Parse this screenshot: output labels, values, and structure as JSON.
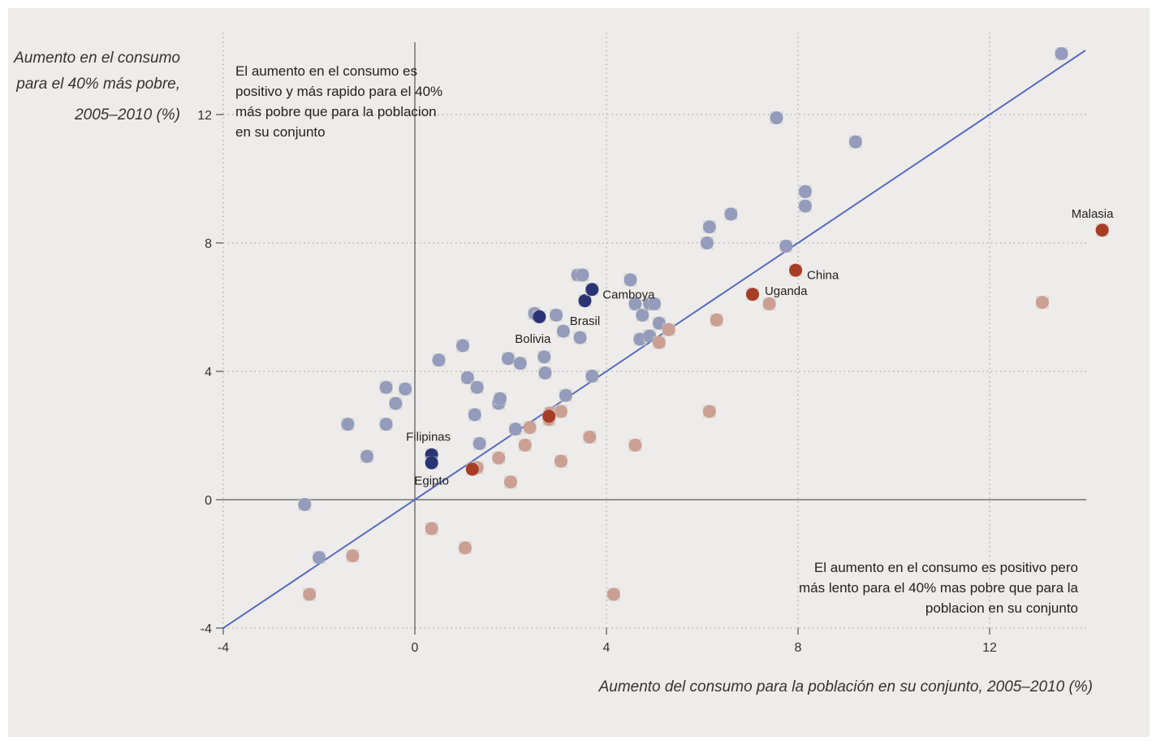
{
  "chart_data": {
    "type": "scatter",
    "ylabel": [
      "Aumento en el consumo",
      "para el 40% más pobre,",
      "2005–2010 (%)"
    ],
    "xlabel": "Aumento del consumo para la población en su conjunto, 2005–2010 (%)",
    "xlim": [
      -4,
      14.5
    ],
    "ylim": [
      -4,
      14
    ],
    "xticks": [
      -4,
      0,
      4,
      8,
      12
    ],
    "yticks": [
      -4,
      0,
      4,
      8,
      12
    ],
    "xtick_labels": [
      "-4",
      "0",
      "4",
      "8",
      "12"
    ],
    "ytick_labels": [
      "-4",
      "0",
      "4",
      "8",
      "12"
    ],
    "grid": "dotted at ticks",
    "reference_line": {
      "slope": 1,
      "intercept": 0,
      "color": "#5a6bbf"
    },
    "annotations": {
      "top_left": [
        "El aumento en el consumo es",
        "positivo y más rapido para el 40%",
        "más pobre que para la poblacion",
        "en su conjunto"
      ],
      "bottom_right": [
        "El aumento en el consumo es positivo pero",
        "más lento para el 40% mas pobre que para la",
        "poblacion en su conjunto"
      ]
    },
    "colors": {
      "above": "#949bbb",
      "below": "#cc9f94",
      "highlight_above": "#2a3475",
      "highlight_below": "#a83d26",
      "halo": "#cfcdc8"
    },
    "series": [
      {
        "group": "above",
        "points": [
          [
            -2.3,
            -0.15
          ],
          [
            -2.0,
            -1.8
          ],
          [
            -1.4,
            2.35
          ],
          [
            -1.0,
            1.35
          ],
          [
            -0.6,
            3.5
          ],
          [
            -0.6,
            2.35
          ],
          [
            -0.4,
            3.0
          ],
          [
            -0.2,
            3.45
          ],
          [
            0.5,
            4.35
          ],
          [
            1.0,
            4.8
          ],
          [
            1.1,
            3.8
          ],
          [
            1.25,
            2.65
          ],
          [
            1.3,
            3.5
          ],
          [
            1.35,
            1.75
          ],
          [
            1.75,
            3.0
          ],
          [
            1.78,
            3.15
          ],
          [
            1.95,
            4.4
          ],
          [
            2.1,
            2.2
          ],
          [
            2.2,
            4.25
          ],
          [
            2.5,
            5.8
          ],
          [
            2.7,
            4.45
          ],
          [
            2.72,
            3.95
          ],
          [
            2.95,
            5.75
          ],
          [
            3.1,
            5.25
          ],
          [
            3.15,
            3.25
          ],
          [
            3.4,
            7.0
          ],
          [
            3.5,
            7.0
          ],
          [
            3.45,
            5.05
          ],
          [
            3.7,
            3.85
          ],
          [
            4.5,
            6.85
          ],
          [
            4.6,
            6.1
          ],
          [
            4.7,
            5.0
          ],
          [
            4.75,
            5.75
          ],
          [
            4.9,
            5.1
          ],
          [
            4.9,
            6.1
          ],
          [
            5.0,
            6.1
          ],
          [
            5.1,
            5.5
          ],
          [
            6.1,
            8.0
          ],
          [
            6.15,
            8.5
          ],
          [
            6.6,
            8.9
          ],
          [
            7.55,
            11.9
          ],
          [
            7.75,
            7.9
          ],
          [
            8.15,
            9.15
          ],
          [
            8.15,
            9.6
          ],
          [
            9.2,
            11.15
          ],
          [
            13.5,
            13.9
          ]
        ]
      },
      {
        "group": "below",
        "points": [
          [
            -2.2,
            -2.95
          ],
          [
            -1.3,
            -1.75
          ],
          [
            0.35,
            -0.9
          ],
          [
            1.05,
            -1.5
          ],
          [
            1.3,
            1.0
          ],
          [
            1.75,
            1.3
          ],
          [
            2.0,
            0.55
          ],
          [
            2.3,
            1.7
          ],
          [
            2.4,
            2.25
          ],
          [
            2.8,
            2.5
          ],
          [
            2.82,
            2.7
          ],
          [
            3.05,
            2.75
          ],
          [
            3.05,
            1.2
          ],
          [
            3.65,
            1.95
          ],
          [
            4.15,
            -2.95
          ],
          [
            4.6,
            1.7
          ],
          [
            5.1,
            4.9
          ],
          [
            5.3,
            5.3
          ],
          [
            6.3,
            5.6
          ],
          [
            6.15,
            2.75
          ],
          [
            7.4,
            6.1
          ],
          [
            13.1,
            6.15
          ]
        ]
      },
      {
        "group": "highlight_above",
        "points": [
          {
            "x": 0.35,
            "y": 1.4,
            "label": "Filipinas",
            "lx": -4,
            "ly": -22,
            "anchor": "middle"
          },
          {
            "x": 0.35,
            "y": 1.15,
            "label": "Egipto",
            "lx": 0,
            "ly": 22,
            "anchor": "middle"
          },
          {
            "x": 2.6,
            "y": 5.7,
            "label": "Bolivia",
            "lx": -8,
            "ly": 27,
            "anchor": "middle"
          },
          {
            "x": 3.55,
            "y": 6.2,
            "label": "Brasil",
            "lx": 0,
            "ly": 25,
            "anchor": "middle"
          },
          {
            "x": 3.7,
            "y": 6.55,
            "label": "Camboya",
            "lx": 13,
            "ly": 6,
            "anchor": "start"
          }
        ]
      },
      {
        "group": "highlight_below",
        "points": [
          {
            "x": 1.2,
            "y": 0.95
          },
          {
            "x": 2.8,
            "y": 2.6
          },
          {
            "x": 7.05,
            "y": 6.4,
            "label": "Uganda",
            "lx": 15,
            "ly": -4,
            "anchor": "start"
          },
          {
            "x": 7.95,
            "y": 7.15,
            "label": "China",
            "lx": 14,
            "ly": 6,
            "anchor": "start"
          },
          {
            "x": 14.35,
            "y": 8.4,
            "label": "Malasia",
            "lx": -12,
            "ly": -20,
            "anchor": "middle"
          }
        ]
      }
    ]
  }
}
